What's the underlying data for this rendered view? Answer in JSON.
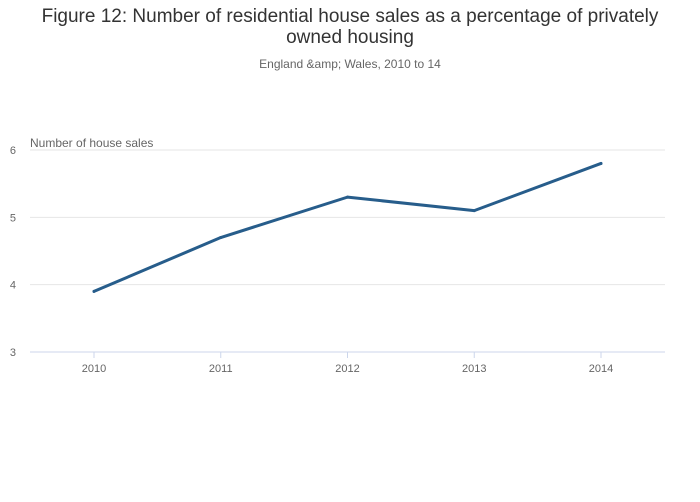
{
  "chart_data": {
    "type": "line",
    "title": "Figure 12: Number of residential house sales as a percentage of privately owned housing",
    "subtitle": "England &amp; Wales, 2010 to 14",
    "ylabel": "Number of house sales",
    "xlabel": "",
    "categories": [
      "2010",
      "2011",
      "2012",
      "2013",
      "2014"
    ],
    "series": [
      {
        "values": [
          3.9,
          4.7,
          5.3,
          5.1,
          5.8
        ]
      }
    ],
    "ylim": [
      3,
      6
    ],
    "yticks": [
      "3",
      "4",
      "5",
      "6"
    ],
    "grid": true,
    "legend": "none",
    "colors": {
      "line": "#275d8b",
      "grid": "#e6e6e6",
      "axis": "#ccd6eb"
    }
  }
}
